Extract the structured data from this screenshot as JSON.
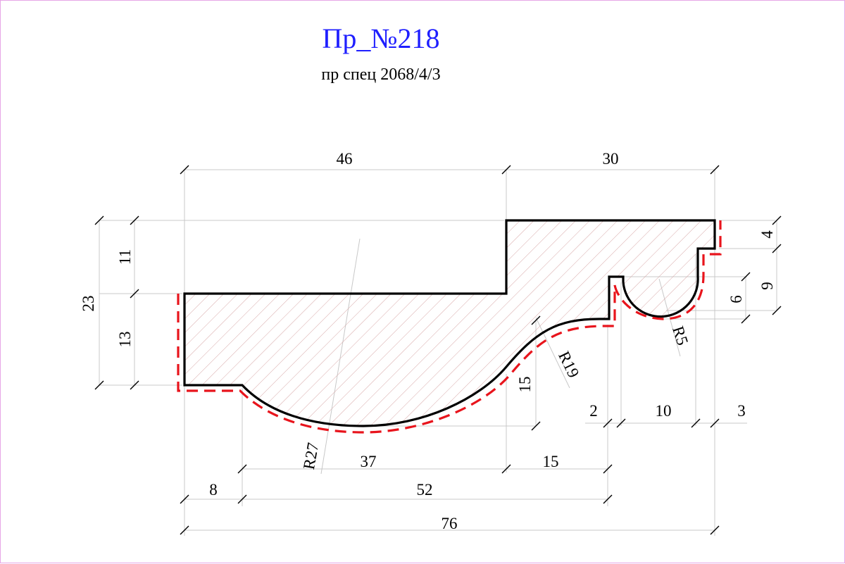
{
  "title": "Пр_№218",
  "subtitle": "пр спец 2068/4/3",
  "colors": {
    "title": "#1f1fff",
    "profile_outline": "#000000",
    "hatch": "#d8a8a8",
    "offset_line": "#e8141c",
    "dimension_line": "#c8c8c8"
  },
  "dimensions": {
    "top_left_width": "46",
    "top_right_width": "30",
    "total_height": "23",
    "upper_step_height": "11",
    "lower_step_height": "13",
    "right_top_offset": "4",
    "right_depth": "9",
    "bead_depth": "6",
    "bead_radius": "R5",
    "cove_radius": "R19",
    "cove_height": "15",
    "lip_width": "2",
    "bead_width": "10",
    "right_end_width": "3",
    "arc_radius": "R27",
    "arc_width": "37",
    "cove_width": "15",
    "left_flat_width": "8",
    "profile_body_width": "52",
    "overall_width": "76"
  }
}
